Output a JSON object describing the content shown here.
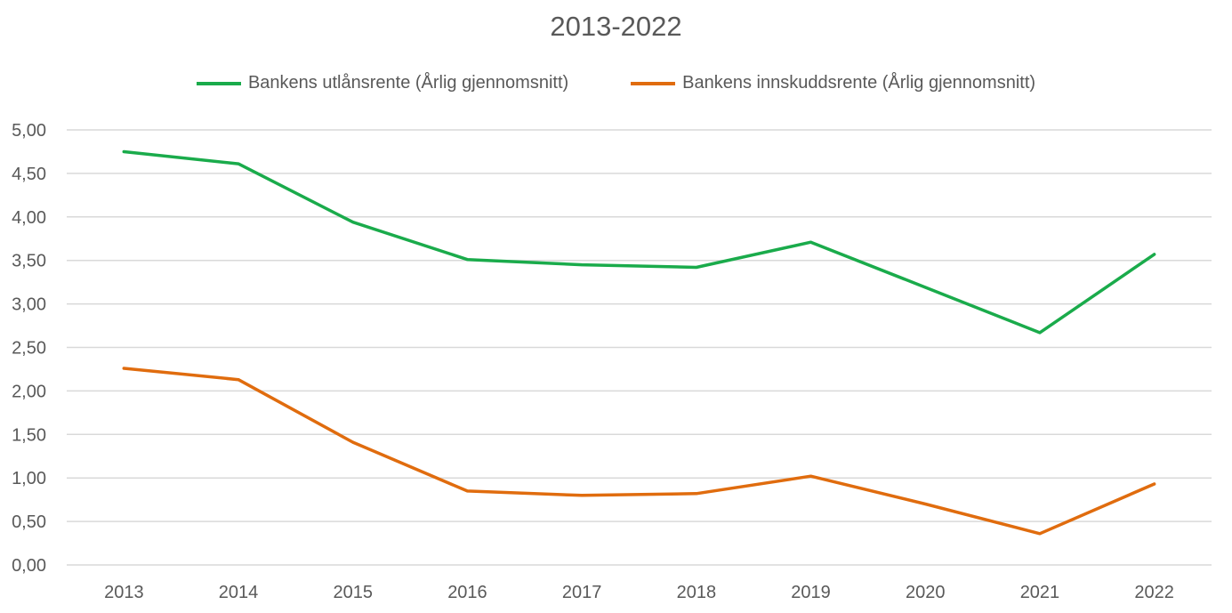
{
  "chart_data": {
    "type": "line",
    "title": "2013-2022",
    "xlabel": "",
    "ylabel": "",
    "x": [
      "2013",
      "2014",
      "2015",
      "2016",
      "2017",
      "2018",
      "2019",
      "2020",
      "2021",
      "2022"
    ],
    "ylim": [
      0,
      5
    ],
    "yticks": [
      "0,00",
      "0,50",
      "1,00",
      "1,50",
      "2,00",
      "2,50",
      "3,00",
      "3,50",
      "4,00",
      "4,50",
      "5,00"
    ],
    "ytick_values": [
      0,
      0.5,
      1,
      1.5,
      2,
      2.5,
      3,
      3.5,
      4,
      4.5,
      5
    ],
    "grid": true,
    "legend_position": "top",
    "series": [
      {
        "name": "Bankens utlånsrente (Årlig gjennomsnitt)",
        "color": "#1aab4b",
        "values": [
          4.75,
          4.61,
          3.94,
          3.51,
          3.45,
          3.42,
          3.71,
          3.19,
          2.67,
          3.57
        ]
      },
      {
        "name": "Bankens innskuddsrente (Årlig gjennomsnitt)",
        "color": "#e06c0e",
        "values": [
          2.26,
          2.13,
          1.41,
          0.85,
          0.8,
          0.82,
          1.02,
          0.7,
          0.36,
          0.93
        ]
      }
    ]
  }
}
